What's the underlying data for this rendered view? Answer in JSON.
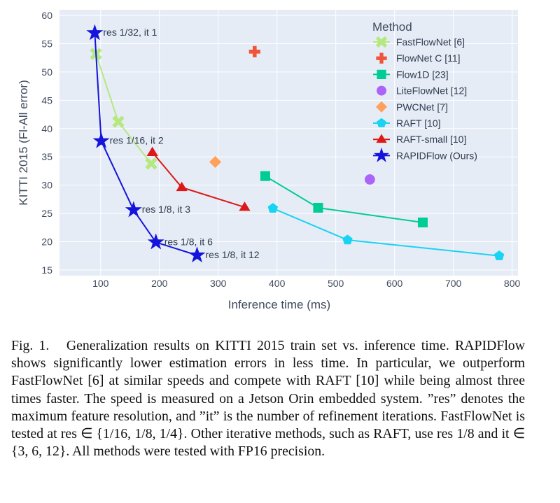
{
  "chart_data": {
    "type": "scatter",
    "title": "",
    "xlabel": "Inference time (ms)",
    "ylabel": "KITTI 2015 (Fl-All error)",
    "xlim": [
      30,
      810
    ],
    "ylim": [
      14,
      61
    ],
    "xticks": [
      100,
      200,
      300,
      400,
      500,
      600,
      700,
      800
    ],
    "yticks": [
      15,
      20,
      25,
      30,
      35,
      40,
      45,
      50,
      55,
      60
    ],
    "grid": true,
    "legend_title": "Method",
    "legend_position": "top-right",
    "series": [
      {
        "name": "FastFlowNet [6]",
        "marker": "x",
        "color": "#b6e880",
        "line": true,
        "points": [
          {
            "x": 92,
            "y": 53.2
          },
          {
            "x": 130,
            "y": 41.2
          },
          {
            "x": 186,
            "y": 33.8
          }
        ]
      },
      {
        "name": "FlowNet C [11]",
        "marker": "cross",
        "color": "#ef553b",
        "line": false,
        "points": [
          {
            "x": 362,
            "y": 53.6
          }
        ]
      },
      {
        "name": "Flow1D [23]",
        "marker": "square",
        "color": "#00cc96",
        "line": true,
        "points": [
          {
            "x": 380,
            "y": 31.6
          },
          {
            "x": 470,
            "y": 26.0
          },
          {
            "x": 648,
            "y": 23.4
          }
        ]
      },
      {
        "name": "LiteFlowNet [12]",
        "marker": "circle",
        "color": "#ab63fa",
        "line": false,
        "points": [
          {
            "x": 558,
            "y": 31.0
          }
        ]
      },
      {
        "name": "PWCNet [7]",
        "marker": "diamond",
        "color": "#ffa15a",
        "line": false,
        "points": [
          {
            "x": 295,
            "y": 34.1
          }
        ]
      },
      {
        "name": "RAFT [10]",
        "marker": "pentagon",
        "color": "#19d3f3",
        "line": true,
        "points": [
          {
            "x": 393,
            "y": 25.9
          },
          {
            "x": 520,
            "y": 20.3
          },
          {
            "x": 778,
            "y": 17.5
          }
        ]
      },
      {
        "name": "RAFT-small [10]",
        "marker": "triangle",
        "color": "#dd1818",
        "line": true,
        "points": [
          {
            "x": 188,
            "y": 35.8
          },
          {
            "x": 238,
            "y": 29.6
          },
          {
            "x": 345,
            "y": 26.1
          }
        ]
      },
      {
        "name": "RAPIDFlow (Ours)",
        "marker": "star",
        "color": "#1414dc",
        "line": true,
        "points": [
          {
            "x": 90,
            "y": 56.9
          },
          {
            "x": 101,
            "y": 37.8
          },
          {
            "x": 156,
            "y": 25.6
          },
          {
            "x": 194,
            "y": 19.9
          },
          {
            "x": 264,
            "y": 17.6
          }
        ]
      }
    ],
    "annotations": [
      {
        "text": "res 1/32, it 1",
        "x": 90,
        "y": 56.9
      },
      {
        "text": "res 1/16, it 2",
        "x": 101,
        "y": 37.8
      },
      {
        "text": "res 1/8, it 3",
        "x": 156,
        "y": 25.6
      },
      {
        "text": "res 1/8, it 6",
        "x": 194,
        "y": 19.9
      },
      {
        "text": "res 1/8, it 12",
        "x": 264,
        "y": 17.6
      }
    ]
  },
  "caption": {
    "label": "Fig. 1.",
    "text": "Generalization results on KITTI 2015 train set vs. inference time. RAPIDFlow shows significantly lower estimation errors in less time. In particular, we outperform FastFlowNet [6] at similar speeds and compete with RAFT [10] while being almost three times faster. The speed is measured on a Jetson Orin embedded system. ”res” denotes the maximum feature resolution, and ”it” is the number of refinement iterations. FastFlowNet is tested at res ∈ {1/16, 1/8, 1/4}. Other iterative methods, such as RAFT, use res 1/8 and it ∈ {3, 6, 12}. All methods were tested with FP16 precision."
  }
}
